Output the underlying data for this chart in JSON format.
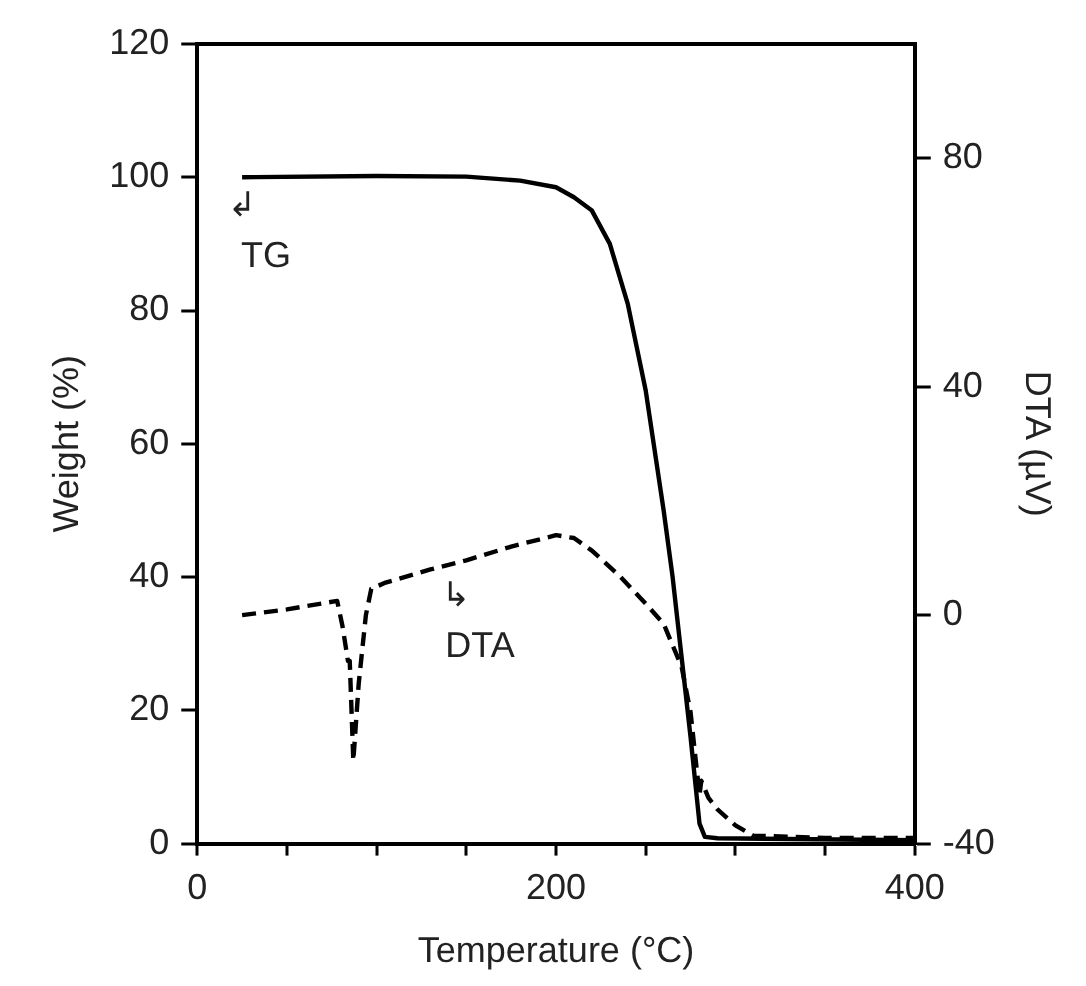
{
  "chart_data": {
    "type": "line",
    "xlabel": "Temperature (°C)",
    "ylabel": "Weight (%)",
    "y2label": "DTA (µV)",
    "xlim": [
      0,
      400
    ],
    "xticks": [
      0,
      {
        "value": 50,
        "label": null
      },
      {
        "value": 100,
        "label": null
      },
      {
        "value": 150,
        "label": null
      },
      200,
      {
        "value": 250,
        "label": null
      },
      {
        "value": 300,
        "label": null
      },
      {
        "value": 350,
        "label": null
      },
      400
    ],
    "ylim": [
      0,
      120
    ],
    "yticks": [
      0,
      20,
      40,
      60,
      80,
      100,
      120
    ],
    "y2lim": [
      -40,
      100
    ],
    "y2ticks": [
      -40,
      0,
      40,
      80
    ],
    "grid": false,
    "legend": false,
    "marker": "none",
    "series": [
      {
        "name": "TG",
        "color": "#000000",
        "line_style": "solid",
        "x": [
          25,
          100,
          150,
          180,
          200,
          210,
          220,
          230,
          240,
          250,
          260,
          265,
          270,
          275,
          280,
          283,
          290,
          400
        ],
        "values": [
          100,
          100.2,
          100.1,
          99.5,
          98.5,
          97,
          95,
          90,
          81,
          68,
          50,
          40,
          28,
          16,
          3,
          1,
          0.8,
          0.5
        ]
      },
      {
        "name": "DTA",
        "color": "#000000",
        "line_style": "dashed",
        "axis": "y2",
        "x": [
          25,
          50,
          78,
          81,
          84,
          85,
          87,
          90,
          94,
          97,
          105,
          130,
          150,
          175,
          200,
          210,
          220,
          235,
          250,
          260,
          265,
          270,
          275,
          280,
          281,
          285,
          290,
          300,
          310,
          350,
          400
        ],
        "values": [
          0,
          1,
          2.5,
          -2,
          -8,
          -8,
          -25.5,
          -12,
          0,
          4.6,
          5.7,
          8,
          9.6,
          12,
          14,
          13.5,
          11.3,
          7,
          2,
          -1.5,
          -5.3,
          -9,
          -17,
          -31.5,
          -29,
          -32,
          -34,
          -36.8,
          -38.6,
          -39,
          -39
        ]
      }
    ],
    "annotations": [
      "↲",
      "↳"
    ]
  }
}
